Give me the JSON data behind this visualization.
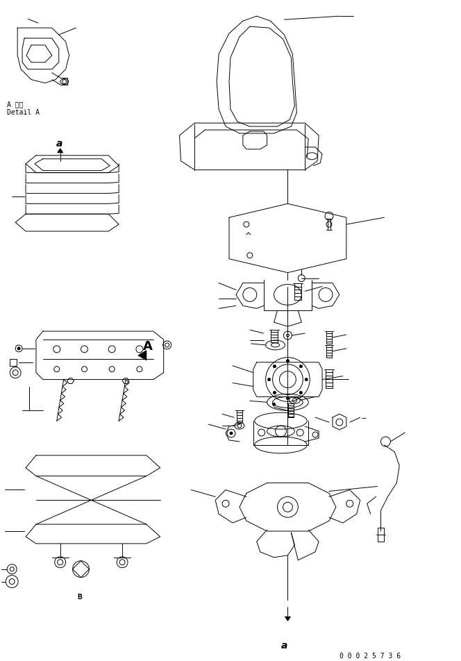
{
  "bg_color": "#ffffff",
  "line_color": "#000000",
  "fig_width": 6.64,
  "fig_height": 9.53,
  "dpi": 100,
  "part_number": "0 0 0 2 5 7 3 6",
  "detail_label_jp": "A 詳細",
  "detail_label_en": "Detail A",
  "label_a_top": "a",
  "label_a_bottom": "a",
  "label_A": "A"
}
